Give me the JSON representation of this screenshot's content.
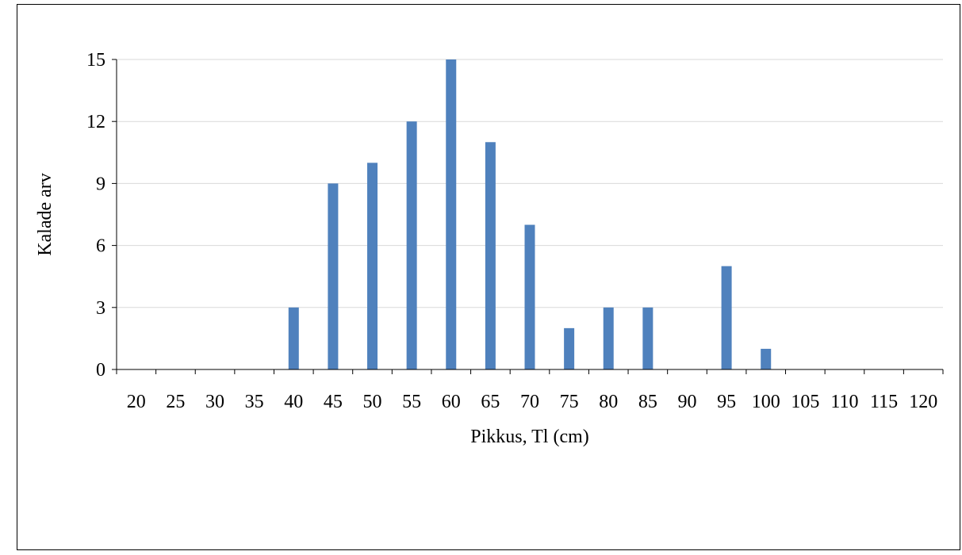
{
  "chart_data": {
    "type": "bar",
    "title": "",
    "xlabel": "Pikkus, Tl (cm)",
    "ylabel": "Kalade arv",
    "categories": [
      "20",
      "25",
      "30",
      "35",
      "40",
      "45",
      "50",
      "55",
      "60",
      "65",
      "70",
      "75",
      "80",
      "85",
      "90",
      "95",
      "100",
      "105",
      "110",
      "115",
      "120"
    ],
    "values": [
      0,
      0,
      0,
      0,
      3,
      9,
      10,
      12,
      15,
      11,
      7,
      2,
      3,
      3,
      0,
      5,
      1,
      0,
      0,
      0,
      0
    ],
    "ylim": [
      0,
      15
    ],
    "yticks": [
      "0",
      "3",
      "6",
      "9",
      "12",
      "15"
    ],
    "grid": true,
    "legend": "none",
    "bar_color": "#4f81bd",
    "grid_color": "#d9d9d9",
    "axis_color": "#000000"
  }
}
